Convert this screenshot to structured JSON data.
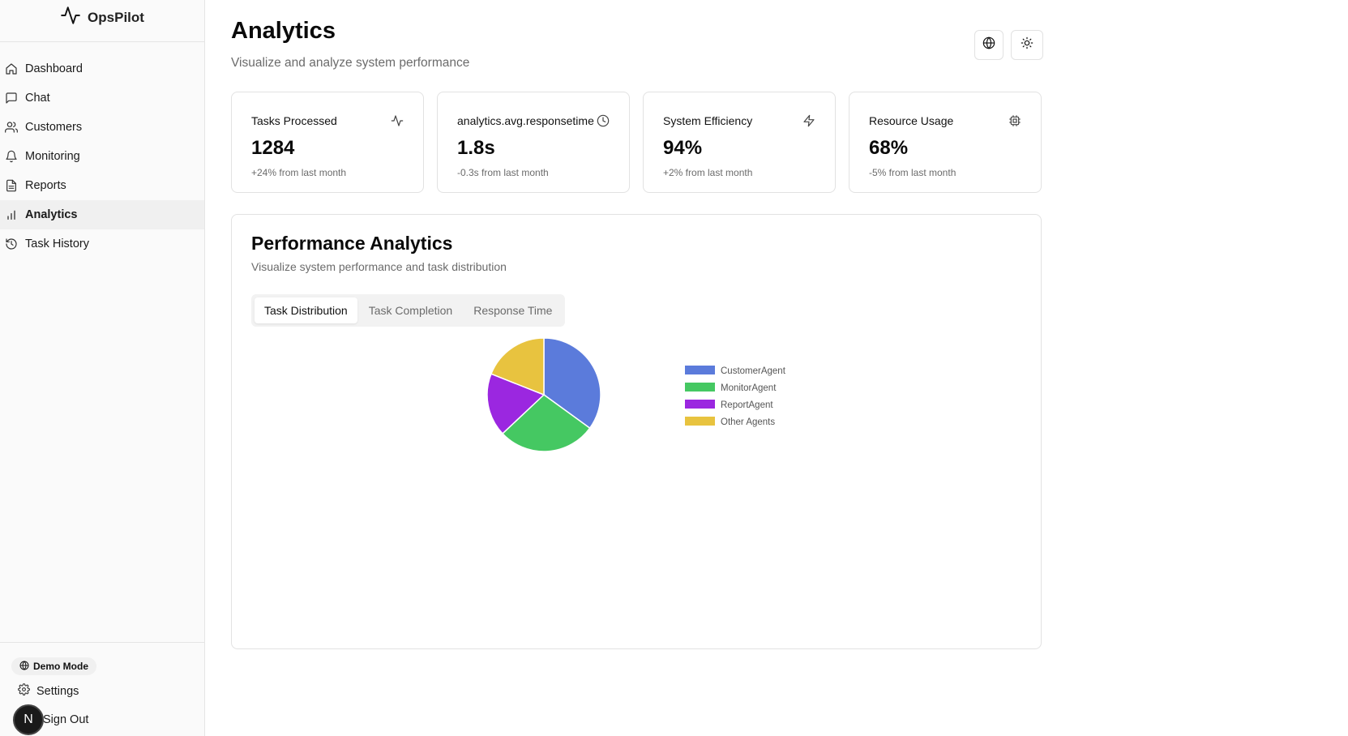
{
  "app": {
    "name": "OpsPilot"
  },
  "sidebar": {
    "items": [
      {
        "label": "Dashboard",
        "icon": "home-icon"
      },
      {
        "label": "Chat",
        "icon": "chat-icon"
      },
      {
        "label": "Customers",
        "icon": "users-icon"
      },
      {
        "label": "Monitoring",
        "icon": "bell-icon"
      },
      {
        "label": "Reports",
        "icon": "file-icon"
      },
      {
        "label": "Analytics",
        "icon": "bar-chart-icon",
        "active": true
      },
      {
        "label": "Task History",
        "icon": "history-icon"
      }
    ],
    "demo_badge": "Demo Mode",
    "settings_label": "Settings",
    "signout_label": "Sign Out",
    "avatar_initial": "N"
  },
  "header": {
    "title": "Analytics",
    "subtitle": "Visualize and analyze system performance",
    "buttons": [
      "globe-icon",
      "sun-icon"
    ]
  },
  "cards": [
    {
      "title": "Tasks Processed",
      "value": "1284",
      "delta": "+24% from last month",
      "icon": "activity-icon"
    },
    {
      "title": "analytics.avg.responsetime",
      "value": "1.8s",
      "delta": "-0.3s from last month",
      "icon": "clock-icon"
    },
    {
      "title": "System Efficiency",
      "value": "94%",
      "delta": "+2% from last month",
      "icon": "zap-icon"
    },
    {
      "title": "Resource Usage",
      "value": "68%",
      "delta": "-5% from last month",
      "icon": "cpu-icon"
    }
  ],
  "panel": {
    "title": "Performance Analytics",
    "subtitle": "Visualize system performance and task distribution",
    "tabs": [
      {
        "label": "Task Distribution",
        "active": true
      },
      {
        "label": "Task Completion"
      },
      {
        "label": "Response Time"
      }
    ]
  },
  "chart_data": {
    "type": "pie",
    "title": "",
    "legend_position": "right",
    "slices": [
      {
        "label": "CustomerAgent",
        "value": 35,
        "color": "#5b7bdb"
      },
      {
        "label": "MonitorAgent",
        "value": 28,
        "color": "#45c862"
      },
      {
        "label": "ReportAgent",
        "value": 18,
        "color": "#9b27e0"
      },
      {
        "label": "Other Agents",
        "value": 19,
        "color": "#e8c33f"
      }
    ]
  }
}
